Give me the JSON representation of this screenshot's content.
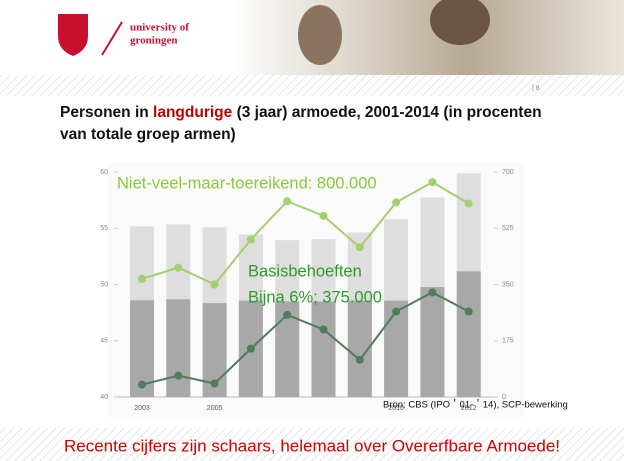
{
  "slide": {
    "logo_text": [
      "university of",
      "groningen"
    ],
    "page_number": "| 8",
    "footer": "Recente cijfers zijn schaars, helemaal over Overerfbare Armoede!"
  },
  "chart_data": {
    "type": "bar",
    "title": [
      "Personen in ",
      "langdurige",
      " (3 jaar) armoede, 2001-2014 (in procenten van totale groep armen)"
    ],
    "title_highlight_color": "#c00000",
    "categories": [
      "2003",
      null,
      "2005",
      null,
      null,
      null,
      null,
      "2010",
      null,
      "2012"
    ],
    "series": [
      {
        "type": "bar",
        "axis": "y2",
        "color": "#dedede",
        "values": [
          531,
          537,
          528,
          506,
          488,
          491,
          512,
          553,
          621,
          696
        ]
      },
      {
        "type": "bar",
        "axis": "y2",
        "color": "#a8a8a8",
        "values": [
          301,
          304,
          292,
          300,
          297,
          297,
          300,
          300,
          342,
          391
        ]
      },
      {
        "type": "line",
        "axis": "y",
        "color": "#a3cf6e",
        "values": [
          50.5,
          51.5,
          50.0,
          54.0,
          57.4,
          56.1,
          53.3,
          57.3,
          59.1,
          57.2
        ]
      },
      {
        "type": "line",
        "axis": "y",
        "color": "#4f7d5c",
        "values": [
          41.1,
          41.9,
          41.2,
          44.3,
          47.3,
          46.0,
          43.3,
          47.6,
          49.3,
          47.6
        ]
      }
    ],
    "ylim": [
      40,
      60
    ],
    "yticks": [
      40,
      45,
      50,
      55,
      60
    ],
    "y2lim": [
      0,
      700
    ],
    "y2ticks": [
      0,
      175,
      350,
      525,
      700
    ],
    "annotations": [
      "Niet-veel-maar-toereikend: 800.000",
      "Basisbehoeften",
      "Bijna 6%; 375.000"
    ],
    "annotation_colors": [
      "#8cc63f",
      "#2e9a2e",
      "#2e9a2e"
    ],
    "source": "Bron: CBS (IPO＇01-＇14), SCP-bewerking"
  }
}
